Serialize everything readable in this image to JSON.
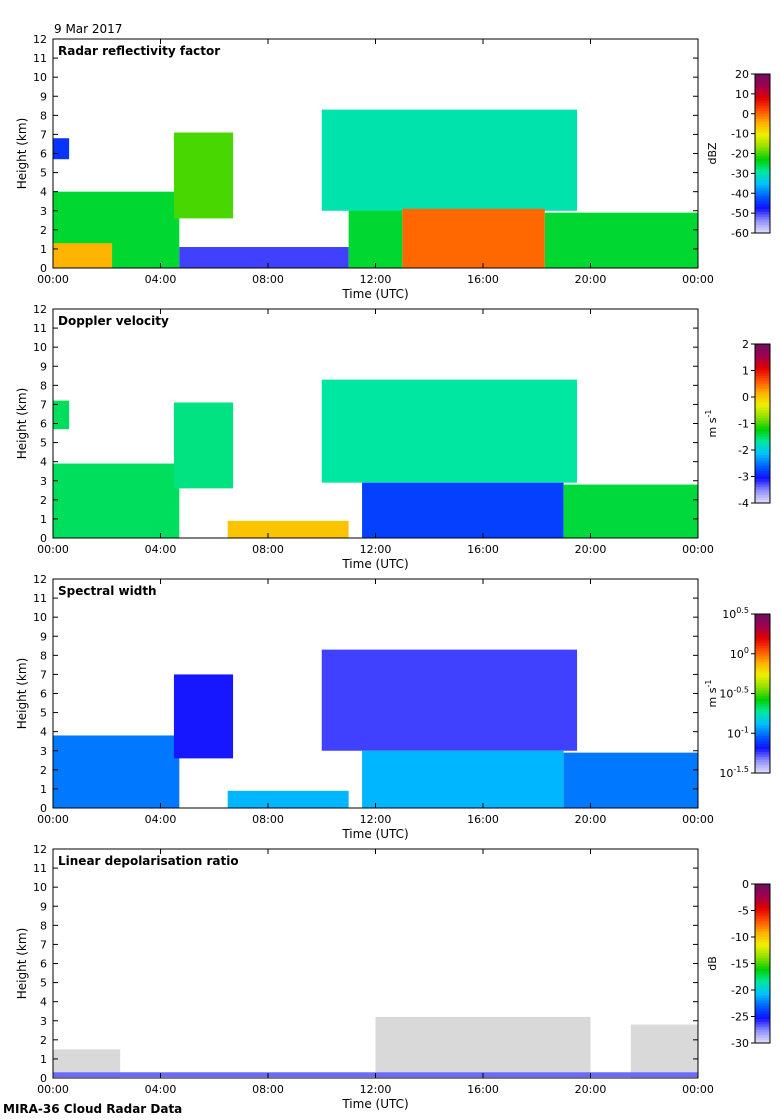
{
  "header": {
    "date": "9 Mar 2017"
  },
  "footer": {
    "caption": "MIRA-36 Cloud Radar Data"
  },
  "colors": {
    "colormap": [
      "#e0e0f8",
      "#9090ff",
      "#1010ff",
      "#0060ff",
      "#00c0ff",
      "#00e8a0",
      "#00d000",
      "#90e000",
      "#f0f000",
      "#ffb000",
      "#ff5000",
      "#e00000",
      "#a00050",
      "#701060"
    ],
    "ldr_cloud": "#d9d9d9"
  },
  "chart_data": [
    {
      "type": "heatmap",
      "title": "Radar reflectivity factor",
      "xlabel": "Time (UTC)",
      "ylabel": "Height (km)",
      "x_ticks": [
        "00:00",
        "04:00",
        "08:00",
        "12:00",
        "16:00",
        "20:00",
        "00:00"
      ],
      "xlim": [
        0,
        24
      ],
      "ylim": [
        0,
        12
      ],
      "y_ticks": [
        "0",
        "1",
        "2",
        "3",
        "4",
        "5",
        "6",
        "7",
        "8",
        "9",
        "10",
        "11",
        "12"
      ],
      "colorbar": {
        "label": "dBZ",
        "ticks": [
          "20",
          "10",
          "0",
          "-10",
          "-20",
          "-30",
          "-40",
          "-50",
          "-60"
        ],
        "range": [
          -60,
          20
        ]
      },
      "regions": [
        {
          "time": [
            0,
            4.7
          ],
          "height": [
            0,
            4.0
          ],
          "value": -25
        },
        {
          "time": [
            0,
            2.2
          ],
          "height": [
            0,
            1.3
          ],
          "value": -5
        },
        {
          "time": [
            0,
            0.6
          ],
          "height": [
            5.7,
            6.8
          ],
          "value": -45
        },
        {
          "time": [
            4.5,
            6.7
          ],
          "height": [
            2.6,
            7.1
          ],
          "value": -20
        },
        {
          "time": [
            4.7,
            11.0
          ],
          "height": [
            0,
            1.1
          ],
          "value": -50
        },
        {
          "time": [
            11.0,
            13.0
          ],
          "height": [
            0,
            3.2
          ],
          "value": -25
        },
        {
          "time": [
            10.0,
            19.5
          ],
          "height": [
            3.0,
            8.3
          ],
          "value": -30
        },
        {
          "time": [
            13.0,
            18.3
          ],
          "height": [
            0,
            3.1
          ],
          "value": 0
        },
        {
          "time": [
            18.3,
            24.0
          ],
          "height": [
            0,
            2.9
          ],
          "value": -25
        }
      ]
    },
    {
      "type": "heatmap",
      "title": "Doppler velocity",
      "xlabel": "Time (UTC)",
      "ylabel": "Height (km)",
      "x_ticks": [
        "00:00",
        "04:00",
        "08:00",
        "12:00",
        "16:00",
        "20:00",
        "00:00"
      ],
      "xlim": [
        0,
        24
      ],
      "ylim": [
        0,
        12
      ],
      "y_ticks": [
        "0",
        "1",
        "2",
        "3",
        "4",
        "5",
        "6",
        "7",
        "8",
        "9",
        "10",
        "11",
        "12"
      ],
      "colorbar": {
        "label": "m s-1",
        "ticks": [
          "2",
          "1",
          "0",
          "-1",
          "-2",
          "-3",
          "-4"
        ],
        "range": [
          -4,
          2
        ]
      },
      "regions": [
        {
          "time": [
            0,
            4.7
          ],
          "height": [
            0,
            3.9
          ],
          "value": -1.5
        },
        {
          "time": [
            0,
            0.6
          ],
          "height": [
            5.7,
            7.2
          ],
          "value": -1.5
        },
        {
          "time": [
            4.5,
            6.7
          ],
          "height": [
            2.6,
            7.1
          ],
          "value": -1.6
        },
        {
          "time": [
            6.5,
            11.0
          ],
          "height": [
            0,
            0.9
          ],
          "value": 0.0
        },
        {
          "time": [
            10.0,
            19.5
          ],
          "height": [
            2.9,
            8.3
          ],
          "value": -1.7
        },
        {
          "time": [
            11.5,
            19.0
          ],
          "height": [
            0,
            2.9
          ],
          "value": -2.8
        },
        {
          "time": [
            19.0,
            24.0
          ],
          "height": [
            0,
            2.8
          ],
          "value": -1.4
        }
      ]
    },
    {
      "type": "heatmap",
      "title": "Spectral width",
      "xlabel": "Time (UTC)",
      "ylabel": "Height (km)",
      "x_ticks": [
        "00:00",
        "04:00",
        "08:00",
        "12:00",
        "16:00",
        "20:00",
        "00:00"
      ],
      "xlim": [
        0,
        24
      ],
      "ylim": [
        0,
        12
      ],
      "y_ticks": [
        "0",
        "1",
        "2",
        "3",
        "4",
        "5",
        "6",
        "7",
        "8",
        "9",
        "10",
        "11",
        "12"
      ],
      "colorbar": {
        "label": "m s-1",
        "ticks": [
          "10^0.5",
          "10^0",
          "10^-0.5",
          "10^-1",
          "10^-1.5"
        ],
        "range": [
          -1.5,
          0.5
        ],
        "scale": "log10"
      },
      "regions": [
        {
          "time": [
            0,
            4.7
          ],
          "height": [
            0,
            3.8
          ],
          "value": -1.0
        },
        {
          "time": [
            4.5,
            6.7
          ],
          "height": [
            2.6,
            7.0
          ],
          "value": -1.2
        },
        {
          "time": [
            6.5,
            11.0
          ],
          "height": [
            0,
            0.9
          ],
          "value": -0.9
        },
        {
          "time": [
            10.0,
            19.5
          ],
          "height": [
            3.0,
            8.3
          ],
          "value": -1.25
        },
        {
          "time": [
            11.5,
            19.0
          ],
          "height": [
            0,
            3.0
          ],
          "value": -0.9
        },
        {
          "time": [
            19.0,
            24.0
          ],
          "height": [
            0,
            2.9
          ],
          "value": -1.0
        }
      ]
    },
    {
      "type": "heatmap",
      "title": "Linear depolarisation ratio",
      "xlabel": "Time (UTC)",
      "ylabel": "Height (km)",
      "x_ticks": [
        "00:00",
        "04:00",
        "08:00",
        "12:00",
        "16:00",
        "20:00",
        "00:00"
      ],
      "xlim": [
        0,
        24
      ],
      "ylim": [
        0,
        12
      ],
      "y_ticks": [
        "0",
        "1",
        "2",
        "3",
        "4",
        "5",
        "6",
        "7",
        "8",
        "9",
        "10",
        "11",
        "12"
      ],
      "colorbar": {
        "label": "dB",
        "ticks": [
          "0",
          "-5",
          "-10",
          "-15",
          "-20",
          "-25",
          "-30"
        ],
        "range": [
          -30,
          0
        ]
      },
      "regions": [
        {
          "time": [
            0,
            2.5
          ],
          "height": [
            0,
            1.5
          ],
          "value": null
        },
        {
          "time": [
            12.0,
            20.0
          ],
          "height": [
            0,
            3.2
          ],
          "value": null
        },
        {
          "time": [
            21.5,
            24.0
          ],
          "height": [
            0,
            2.8
          ],
          "value": null
        },
        {
          "time": [
            0,
            24.0
          ],
          "height": [
            0.05,
            0.3
          ],
          "value": -27
        }
      ]
    }
  ]
}
